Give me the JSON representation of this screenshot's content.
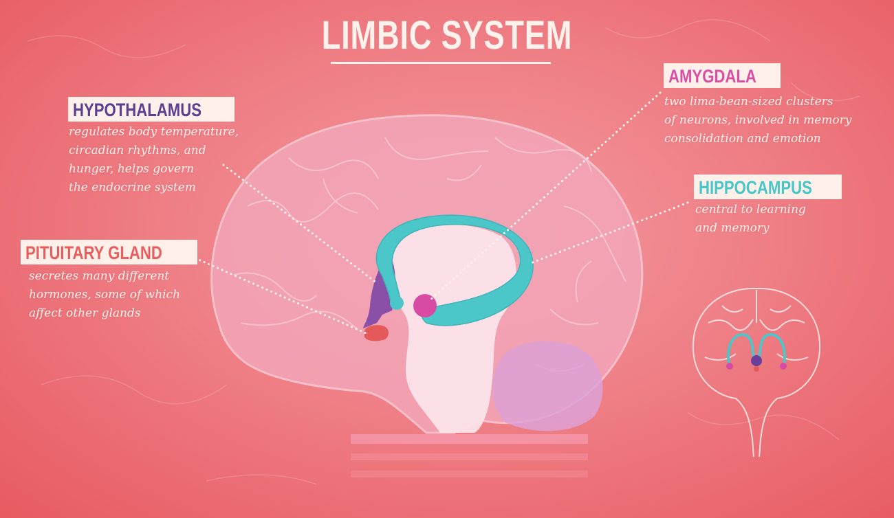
{
  "title": "LIMBIC SYSTEM",
  "colors": {
    "background": "#ef7f86",
    "label_background": "#fff0ea",
    "hypothalamus": "#5c3f93",
    "amygdala": "#d84fa4",
    "hippocampus": "#45c6c8",
    "pituitary": "#ea5d5d",
    "text": "#fff1ec"
  },
  "labels": {
    "hypothalamus": {
      "name": "HYPOTHALAMUS",
      "lines": [
        "regulates body temperature,",
        "circadian rhythms, and",
        "hunger, helps govern",
        "the endocrine system"
      ]
    },
    "pituitary": {
      "name": "PITUITARY GLAND",
      "lines": [
        "secretes many different",
        "hormones, some of which",
        "affect other glands"
      ]
    },
    "amygdala": {
      "name": "AMYGDALA",
      "lines": [
        "two lima-bean-sized clusters",
        "of neurons, involved in memory",
        "consolidation and emotion"
      ]
    },
    "hippocampus": {
      "name": "HIPPOCAMPUS",
      "lines": [
        "central to learning",
        "and memory"
      ]
    }
  }
}
